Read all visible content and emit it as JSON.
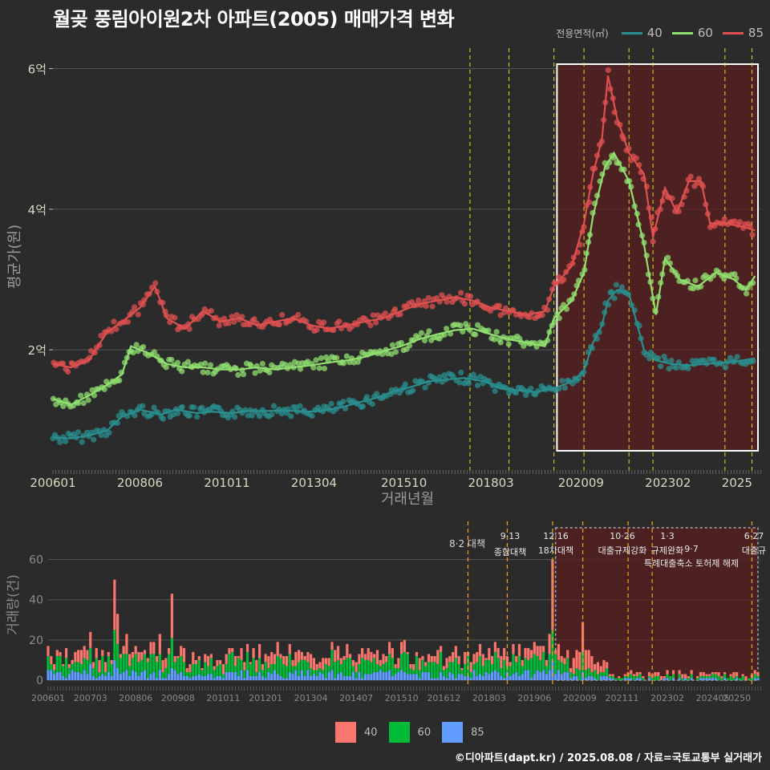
{
  "title": "월곶 풍림아이원2차 아파트(2005) 매매가격 변화",
  "legend": {
    "title": "전용면적(㎡)",
    "items": [
      {
        "label": "40",
        "color": "#2a8f8f"
      },
      {
        "label": "60",
        "color": "#90e070"
      },
      {
        "label": "85",
        "color": "#e05050"
      }
    ]
  },
  "bar_legend": [
    {
      "label": "40",
      "color": "#f8766d"
    },
    {
      "label": "60",
      "color": "#00ba38"
    },
    {
      "label": "85",
      "color": "#619cff"
    }
  ],
  "credit": "©디아파트(dapt.kr) / 2025.08.08 / 자료=국토교통부 실거래가",
  "chart_data": [
    {
      "type": "line",
      "title": "월곶 풍림아이원2차 아파트(2005) 매매가격 변화",
      "xlabel": "거래년월",
      "ylabel": "평균가(원)",
      "x_ticks": [
        "200601",
        "200806",
        "201011",
        "201304",
        "201510",
        "201803",
        "202009",
        "202302",
        "2025"
      ],
      "y_ticks": [
        "2억",
        "4억",
        "6억"
      ],
      "ylim": [
        0.45,
        6.2
      ],
      "y_unit": "억",
      "policy_lines": [
        "2017-08",
        "2018-09",
        "2019-12",
        "2020-10",
        "2022-01",
        "2022-09",
        "2024-09",
        "2025-06"
      ],
      "highlight_range": [
        "2020-01",
        "2025-08"
      ],
      "series": [
        {
          "name": "40",
          "color": "#2a8f8f",
          "points": [
            {
              "x": "2006-01",
              "y": 0.75
            },
            {
              "x": "2006-07",
              "y": 0.74
            },
            {
              "x": "2007-01",
              "y": 0.78
            },
            {
              "x": "2007-07",
              "y": 0.85
            },
            {
              "x": "2007-12",
              "y": 1.05
            },
            {
              "x": "2008-06",
              "y": 1.15
            },
            {
              "x": "2009-01",
              "y": 1.08
            },
            {
              "x": "2009-06",
              "y": 1.15
            },
            {
              "x": "2010-01",
              "y": 1.1
            },
            {
              "x": "2010-06",
              "y": 1.12
            },
            {
              "x": "2011-01",
              "y": 1.1
            },
            {
              "x": "2011-06",
              "y": 1.13
            },
            {
              "x": "2012-01",
              "y": 1.13
            },
            {
              "x": "2012-06",
              "y": 1.14
            },
            {
              "x": "2013-01",
              "y": 1.12
            },
            {
              "x": "2013-06",
              "y": 1.13
            },
            {
              "x": "2014-01",
              "y": 1.18
            },
            {
              "x": "2014-06",
              "y": 1.24
            },
            {
              "x": "2015-01",
              "y": 1.32
            },
            {
              "x": "2015-06",
              "y": 1.4
            },
            {
              "x": "2016-01",
              "y": 1.48
            },
            {
              "x": "2016-06",
              "y": 1.55
            },
            {
              "x": "2017-01",
              "y": 1.58
            },
            {
              "x": "2017-06",
              "y": 1.6
            },
            {
              "x": "2018-01",
              "y": 1.55
            },
            {
              "x": "2018-06",
              "y": 1.45
            },
            {
              "x": "2019-01",
              "y": 1.42
            },
            {
              "x": "2019-06",
              "y": 1.4
            },
            {
              "x": "2019-12",
              "y": 1.45
            },
            {
              "x": "2020-06",
              "y": 1.55
            },
            {
              "x": "2020-10",
              "y": 1.7
            },
            {
              "x": "2021-01",
              "y": 2.1
            },
            {
              "x": "2021-04",
              "y": 2.35
            },
            {
              "x": "2021-06",
              "y": 2.7
            },
            {
              "x": "2021-09",
              "y": 2.85
            },
            {
              "x": "2022-01",
              "y": 2.8
            },
            {
              "x": "2022-06",
              "y": 2.0
            },
            {
              "x": "2022-10",
              "y": 1.85
            },
            {
              "x": "2023-03",
              "y": 1.8
            },
            {
              "x": "2023-09",
              "y": 1.78
            },
            {
              "x": "2024-03",
              "y": 1.8
            },
            {
              "x": "2024-09",
              "y": 1.82
            },
            {
              "x": "2025-03",
              "y": 1.85
            },
            {
              "x": "2025-07",
              "y": 1.88
            }
          ]
        },
        {
          "name": "60",
          "color": "#90e070",
          "points": [
            {
              "x": "2006-01",
              "y": 1.3
            },
            {
              "x": "2006-07",
              "y": 1.22
            },
            {
              "x": "2007-01",
              "y": 1.35
            },
            {
              "x": "2007-07",
              "y": 1.5
            },
            {
              "x": "2007-12",
              "y": 1.65
            },
            {
              "x": "2008-03",
              "y": 2.05
            },
            {
              "x": "2008-09",
              "y": 1.95
            },
            {
              "x": "2009-03",
              "y": 1.8
            },
            {
              "x": "2009-09",
              "y": 1.75
            },
            {
              "x": "2010-03",
              "y": 1.75
            },
            {
              "x": "2010-09",
              "y": 1.72
            },
            {
              "x": "2011-03",
              "y": 1.72
            },
            {
              "x": "2011-09",
              "y": 1.75
            },
            {
              "x": "2012-03",
              "y": 1.72
            },
            {
              "x": "2012-09",
              "y": 1.75
            },
            {
              "x": "2013-03",
              "y": 1.78
            },
            {
              "x": "2013-09",
              "y": 1.82
            },
            {
              "x": "2014-03",
              "y": 1.85
            },
            {
              "x": "2014-09",
              "y": 1.9
            },
            {
              "x": "2015-03",
              "y": 1.98
            },
            {
              "x": "2015-09",
              "y": 2.05
            },
            {
              "x": "2016-03",
              "y": 2.15
            },
            {
              "x": "2016-09",
              "y": 2.22
            },
            {
              "x": "2017-03",
              "y": 2.28
            },
            {
              "x": "2017-09",
              "y": 2.3
            },
            {
              "x": "2018-03",
              "y": 2.22
            },
            {
              "x": "2018-09",
              "y": 2.15
            },
            {
              "x": "2019-03",
              "y": 2.1
            },
            {
              "x": "2019-09",
              "y": 2.05
            },
            {
              "x": "2019-12",
              "y": 2.45
            },
            {
              "x": "2020-06",
              "y": 2.7
            },
            {
              "x": "2020-10",
              "y": 3.1
            },
            {
              "x": "2021-01",
              "y": 3.9
            },
            {
              "x": "2021-05",
              "y": 4.6
            },
            {
              "x": "2021-08",
              "y": 4.8
            },
            {
              "x": "2022-01",
              "y": 4.4
            },
            {
              "x": "2022-06",
              "y": 3.5
            },
            {
              "x": "2022-10",
              "y": 2.5
            },
            {
              "x": "2023-01",
              "y": 3.3
            },
            {
              "x": "2023-06",
              "y": 3.0
            },
            {
              "x": "2023-12",
              "y": 2.9
            },
            {
              "x": "2024-06",
              "y": 3.1
            },
            {
              "x": "2024-12",
              "y": 3.0
            },
            {
              "x": "2025-04",
              "y": 2.85
            },
            {
              "x": "2025-07",
              "y": 3.05
            }
          ]
        },
        {
          "name": "85",
          "color": "#e05050",
          "points": [
            {
              "x": "2006-01",
              "y": 1.8
            },
            {
              "x": "2006-07",
              "y": 1.75
            },
            {
              "x": "2007-01",
              "y": 1.85
            },
            {
              "x": "2007-07",
              "y": 2.25
            },
            {
              "x": "2007-12",
              "y": 2.4
            },
            {
              "x": "2008-06",
              "y": 2.6
            },
            {
              "x": "2008-11",
              "y": 2.9
            },
            {
              "x": "2009-03",
              "y": 2.45
            },
            {
              "x": "2009-09",
              "y": 2.3
            },
            {
              "x": "2010-03",
              "y": 2.55
            },
            {
              "x": "2010-09",
              "y": 2.4
            },
            {
              "x": "2011-03",
              "y": 2.45
            },
            {
              "x": "2011-09",
              "y": 2.35
            },
            {
              "x": "2012-03",
              "y": 2.4
            },
            {
              "x": "2012-09",
              "y": 2.45
            },
            {
              "x": "2013-03",
              "y": 2.35
            },
            {
              "x": "2013-09",
              "y": 2.3
            },
            {
              "x": "2014-03",
              "y": 2.35
            },
            {
              "x": "2014-09",
              "y": 2.4
            },
            {
              "x": "2015-03",
              "y": 2.45
            },
            {
              "x": "2015-09",
              "y": 2.55
            },
            {
              "x": "2016-03",
              "y": 2.65
            },
            {
              "x": "2016-09",
              "y": 2.7
            },
            {
              "x": "2017-03",
              "y": 2.75
            },
            {
              "x": "2017-09",
              "y": 2.7
            },
            {
              "x": "2018-03",
              "y": 2.6
            },
            {
              "x": "2018-09",
              "y": 2.55
            },
            {
              "x": "2019-03",
              "y": 2.5
            },
            {
              "x": "2019-09",
              "y": 2.55
            },
            {
              "x": "2019-12",
              "y": 2.9
            },
            {
              "x": "2020-06",
              "y": 3.2
            },
            {
              "x": "2020-10",
              "y": 3.8
            },
            {
              "x": "2021-01",
              "y": 4.5
            },
            {
              "x": "2021-04",
              "y": 5.0
            },
            {
              "x": "2021-06",
              "y": 5.9
            },
            {
              "x": "2021-09",
              "y": 5.3
            },
            {
              "x": "2022-01",
              "y": 4.8
            },
            {
              "x": "2022-06",
              "y": 4.5
            },
            {
              "x": "2022-09",
              "y": 3.6
            },
            {
              "x": "2023-01",
              "y": 4.3
            },
            {
              "x": "2023-05",
              "y": 3.95
            },
            {
              "x": "2023-09",
              "y": 4.4
            },
            {
              "x": "2024-01",
              "y": 4.4
            },
            {
              "x": "2024-04",
              "y": 3.8
            },
            {
              "x": "2024-09",
              "y": 3.8
            },
            {
              "x": "2025-03",
              "y": 3.75
            },
            {
              "x": "2025-07",
              "y": 3.7
            }
          ]
        }
      ]
    },
    {
      "type": "bar",
      "stacked": true,
      "ylabel": "거래량(건)",
      "y_ticks": [
        "0",
        "20",
        "40",
        "60"
      ],
      "ylim": [
        0,
        75
      ],
      "x_ticks": [
        "200601",
        "200703",
        "200806",
        "200908",
        "201011",
        "201201",
        "201304",
        "201407",
        "201510",
        "201612",
        "201803",
        "201906",
        "202009",
        "202111",
        "202302",
        "202405",
        "20250"
      ],
      "policy_labels": [
        {
          "x": "2017-08",
          "text": "8·2 대책"
        },
        {
          "x": "2018-09",
          "text": "9·13 종합대책"
        },
        {
          "x": "2019-12",
          "text": "12·16 18차대책"
        },
        {
          "x": "2020-10",
          "text": "10·26 대출규제강화"
        },
        {
          "x": "2022-01",
          "text": "1·3 규제완화"
        },
        {
          "x": "2022-09",
          "text": "9·7 특례대출축소 토허제 해제"
        },
        {
          "x": "2025-06",
          "text": "6·27 대출규"
        }
      ],
      "series": [
        {
          "name": "40",
          "color": "#f8766d"
        },
        {
          "name": "60",
          "color": "#00ba38"
        },
        {
          "name": "85",
          "color": "#619cff"
        }
      ],
      "peaks": [
        {
          "x": "2006-10",
          "values": [
            5,
            5,
            4
          ]
        },
        {
          "x": "2007-01",
          "values": [
            6,
            6,
            5
          ]
        },
        {
          "x": "2007-03",
          "values": [
            8,
            8,
            8
          ]
        },
        {
          "x": "2007-11",
          "values": [
            25,
            15,
            10
          ]
        },
        {
          "x": "2007-12",
          "values": [
            15,
            12,
            6
          ]
        },
        {
          "x": "2008-03",
          "values": [
            10,
            8,
            5
          ]
        },
        {
          "x": "2009-02",
          "values": [
            10,
            8,
            5
          ]
        },
        {
          "x": "2009-06",
          "values": [
            22,
            15,
            6
          ]
        },
        {
          "x": "2019-12",
          "values": [
            35,
            15,
            10
          ]
        },
        {
          "x": "2019-11",
          "values": [
            10,
            8,
            5
          ]
        },
        {
          "x": "2020-02",
          "values": [
            8,
            5,
            5
          ]
        },
        {
          "x": "2020-10",
          "values": [
            15,
            10,
            4
          ]
        }
      ]
    }
  ]
}
